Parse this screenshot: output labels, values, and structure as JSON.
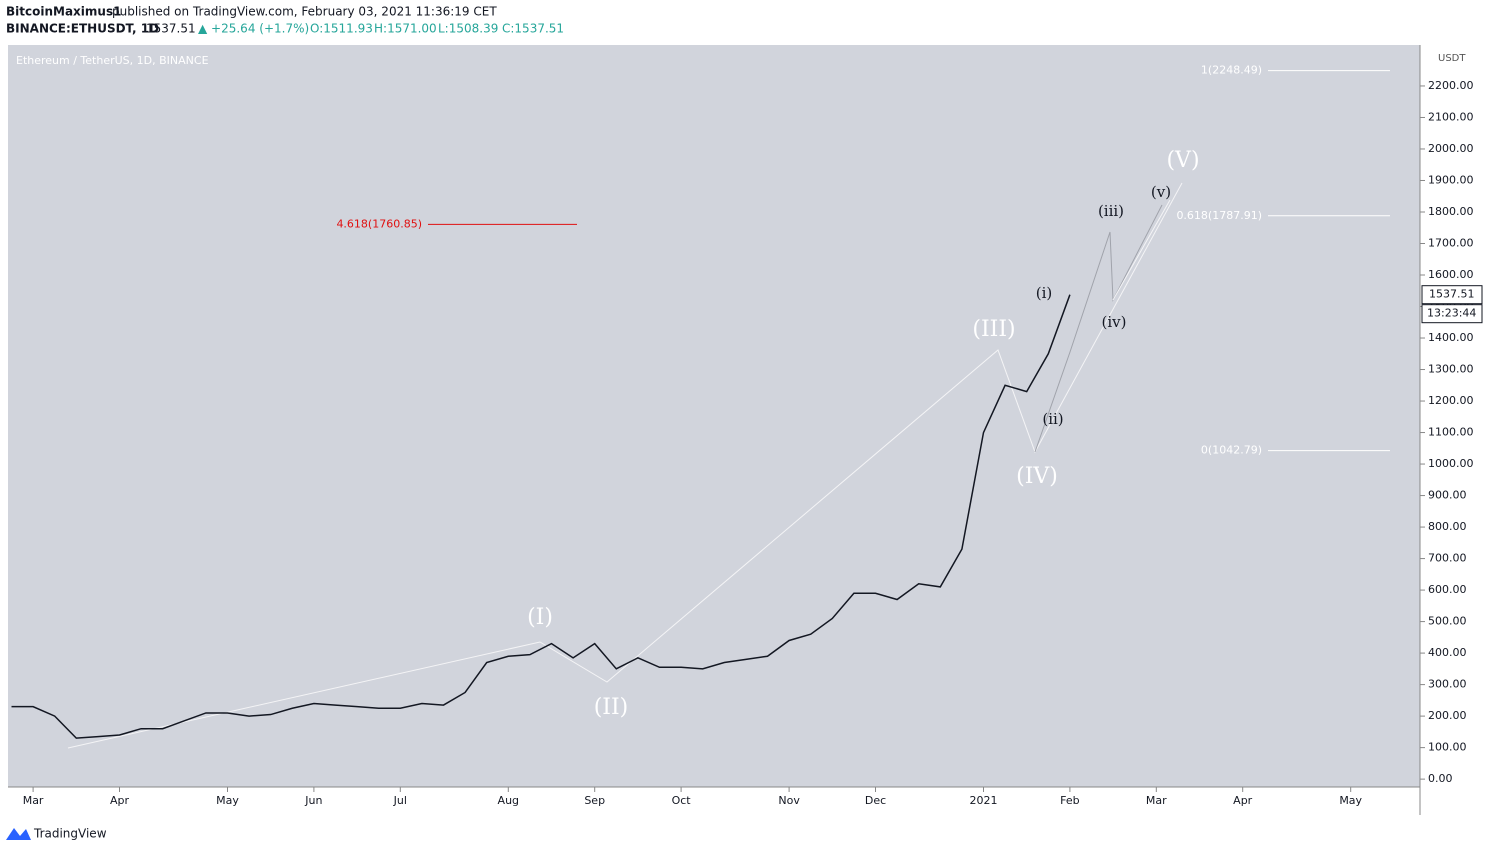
{
  "header": {
    "author": "BitcoinMaximus1",
    "published": "published on TradingView.com, February 03, 2021 11:36:19 CET",
    "symbol": "BINANCE:ETHUSDT, 1D",
    "last": "1537.51",
    "change": "▲ +25.64 (+1.7%)",
    "open": "O:1511.93",
    "high": "H:1571.00",
    "low": "L:1508.39",
    "close": "C:1537.51"
  },
  "footer": {
    "brand": "TradingView"
  },
  "chart_data": {
    "type": "line",
    "title": "Ethereum / TetherUS, 1D, BINANCE",
    "y_unit": "USDT",
    "color": "#131722",
    "categories": [
      null,
      "Mar",
      null,
      null,
      null,
      "Apr",
      null,
      null,
      null,
      null,
      "May",
      null,
      null,
      null,
      "Jun",
      null,
      null,
      null,
      "Jul",
      null,
      null,
      null,
      null,
      "Aug",
      null,
      null,
      null,
      "Sep",
      null,
      null,
      null,
      "Oct",
      null,
      null,
      null,
      null,
      "Nov",
      null,
      null,
      null,
      "Dec",
      null,
      null,
      null,
      null,
      "2021",
      null,
      null,
      null,
      "Feb",
      null,
      null,
      null,
      "Mar",
      null,
      null,
      null,
      "Apr",
      null,
      null,
      null,
      null,
      "May",
      null,
      null
    ],
    "series": [
      {
        "name": "ETHUSDT",
        "color": "#131722",
        "values": [
          230,
          230,
          200,
          130,
          135,
          140,
          160,
          160,
          185,
          210,
          210,
          200,
          205,
          225,
          240,
          235,
          230,
          225,
          225,
          240,
          235,
          275,
          370,
          390,
          395,
          430,
          385,
          430,
          350,
          385,
          355,
          355,
          350,
          370,
          380,
          390,
          440,
          460,
          510,
          590,
          590,
          570,
          620,
          610,
          730,
          1100,
          1250,
          1230,
          1350,
          1537.51,
          null,
          null,
          null,
          null,
          null,
          null,
          null,
          null,
          null,
          null,
          null,
          null,
          null,
          null,
          null
        ]
      }
    ],
    "ylim": [
      -25,
      2330
    ],
    "yticks": [
      {
        "value": 0,
        "label": "0.00"
      },
      {
        "value": 100,
        "label": "100.00"
      },
      {
        "value": 200,
        "label": "200.00"
      },
      {
        "value": 300,
        "label": "300.00"
      },
      {
        "value": 400,
        "label": "400.00"
      },
      {
        "value": 500,
        "label": "500.00"
      },
      {
        "value": 600,
        "label": "600.00"
      },
      {
        "value": 700,
        "label": "700.00"
      },
      {
        "value": 800,
        "label": "800.00"
      },
      {
        "value": 900,
        "label": "900.00"
      },
      {
        "value": 1000,
        "label": "1000.00"
      },
      {
        "value": 1100,
        "label": "1100.00"
      },
      {
        "value": 1200,
        "label": "1200.00"
      },
      {
        "value": 1300,
        "label": "1300.00"
      },
      {
        "value": 1400,
        "label": "1400.00"
      },
      {
        "value": 1500,
        "label": "1500.00"
      },
      {
        "value": 1600,
        "label": "1600.00"
      },
      {
        "value": 1700,
        "label": "1700.00"
      },
      {
        "value": 1800,
        "label": "1800.00"
      },
      {
        "value": 1900,
        "label": "1900.00"
      },
      {
        "value": 2000,
        "label": "2000.00"
      },
      {
        "value": 2100,
        "label": "2100.00"
      },
      {
        "value": 2200,
        "label": "2200.00"
      }
    ],
    "last_price": {
      "value": 1537.51,
      "label": "1537.51"
    },
    "countdown": "13:23:44",
    "levels": [
      {
        "value": 2248.49,
        "label": "1(2248.49)",
        "color": "#ffffff"
      },
      {
        "value": 1787.91,
        "label": "0.618(1787.91)",
        "color": "#ffffff"
      },
      {
        "value": 1042.79,
        "label": "0(1042.79)",
        "color": "#ffffff"
      },
      {
        "value": 1760.85,
        "label": "4.618(1760.85)",
        "color": "#e01010"
      }
    ],
    "waves": [
      "(I)",
      "(II)",
      "(III)",
      "(IV)",
      "(V)",
      "(i)",
      "(ii)",
      "(iii)",
      "(iv)",
      "(v)"
    ]
  }
}
